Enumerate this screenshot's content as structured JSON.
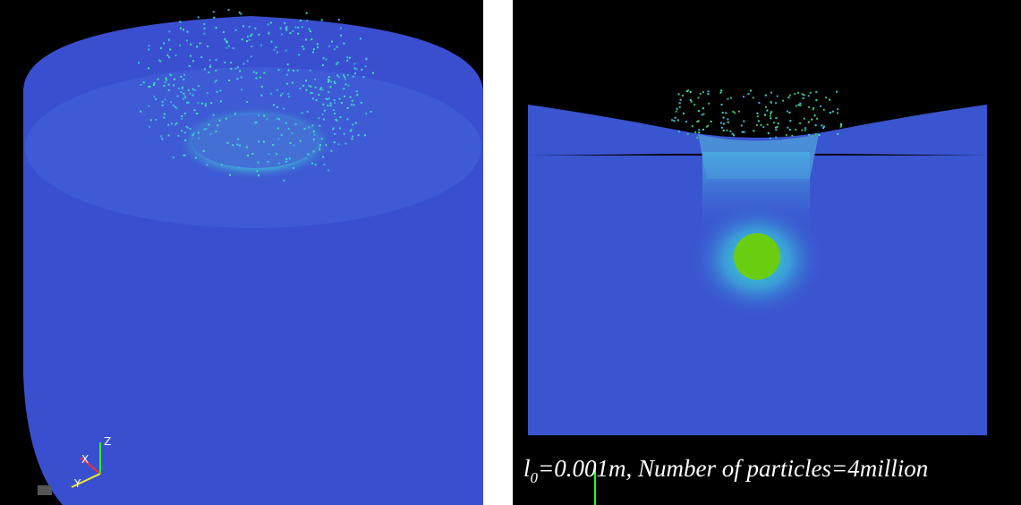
{
  "left_panel": {
    "axes": {
      "z": "Z",
      "x": "X",
      "y": "Y"
    }
  },
  "right_panel": {
    "caption": {
      "symbol": "l",
      "subscript": "0",
      "text": "=0.001m, Number of particles=4million"
    }
  }
}
